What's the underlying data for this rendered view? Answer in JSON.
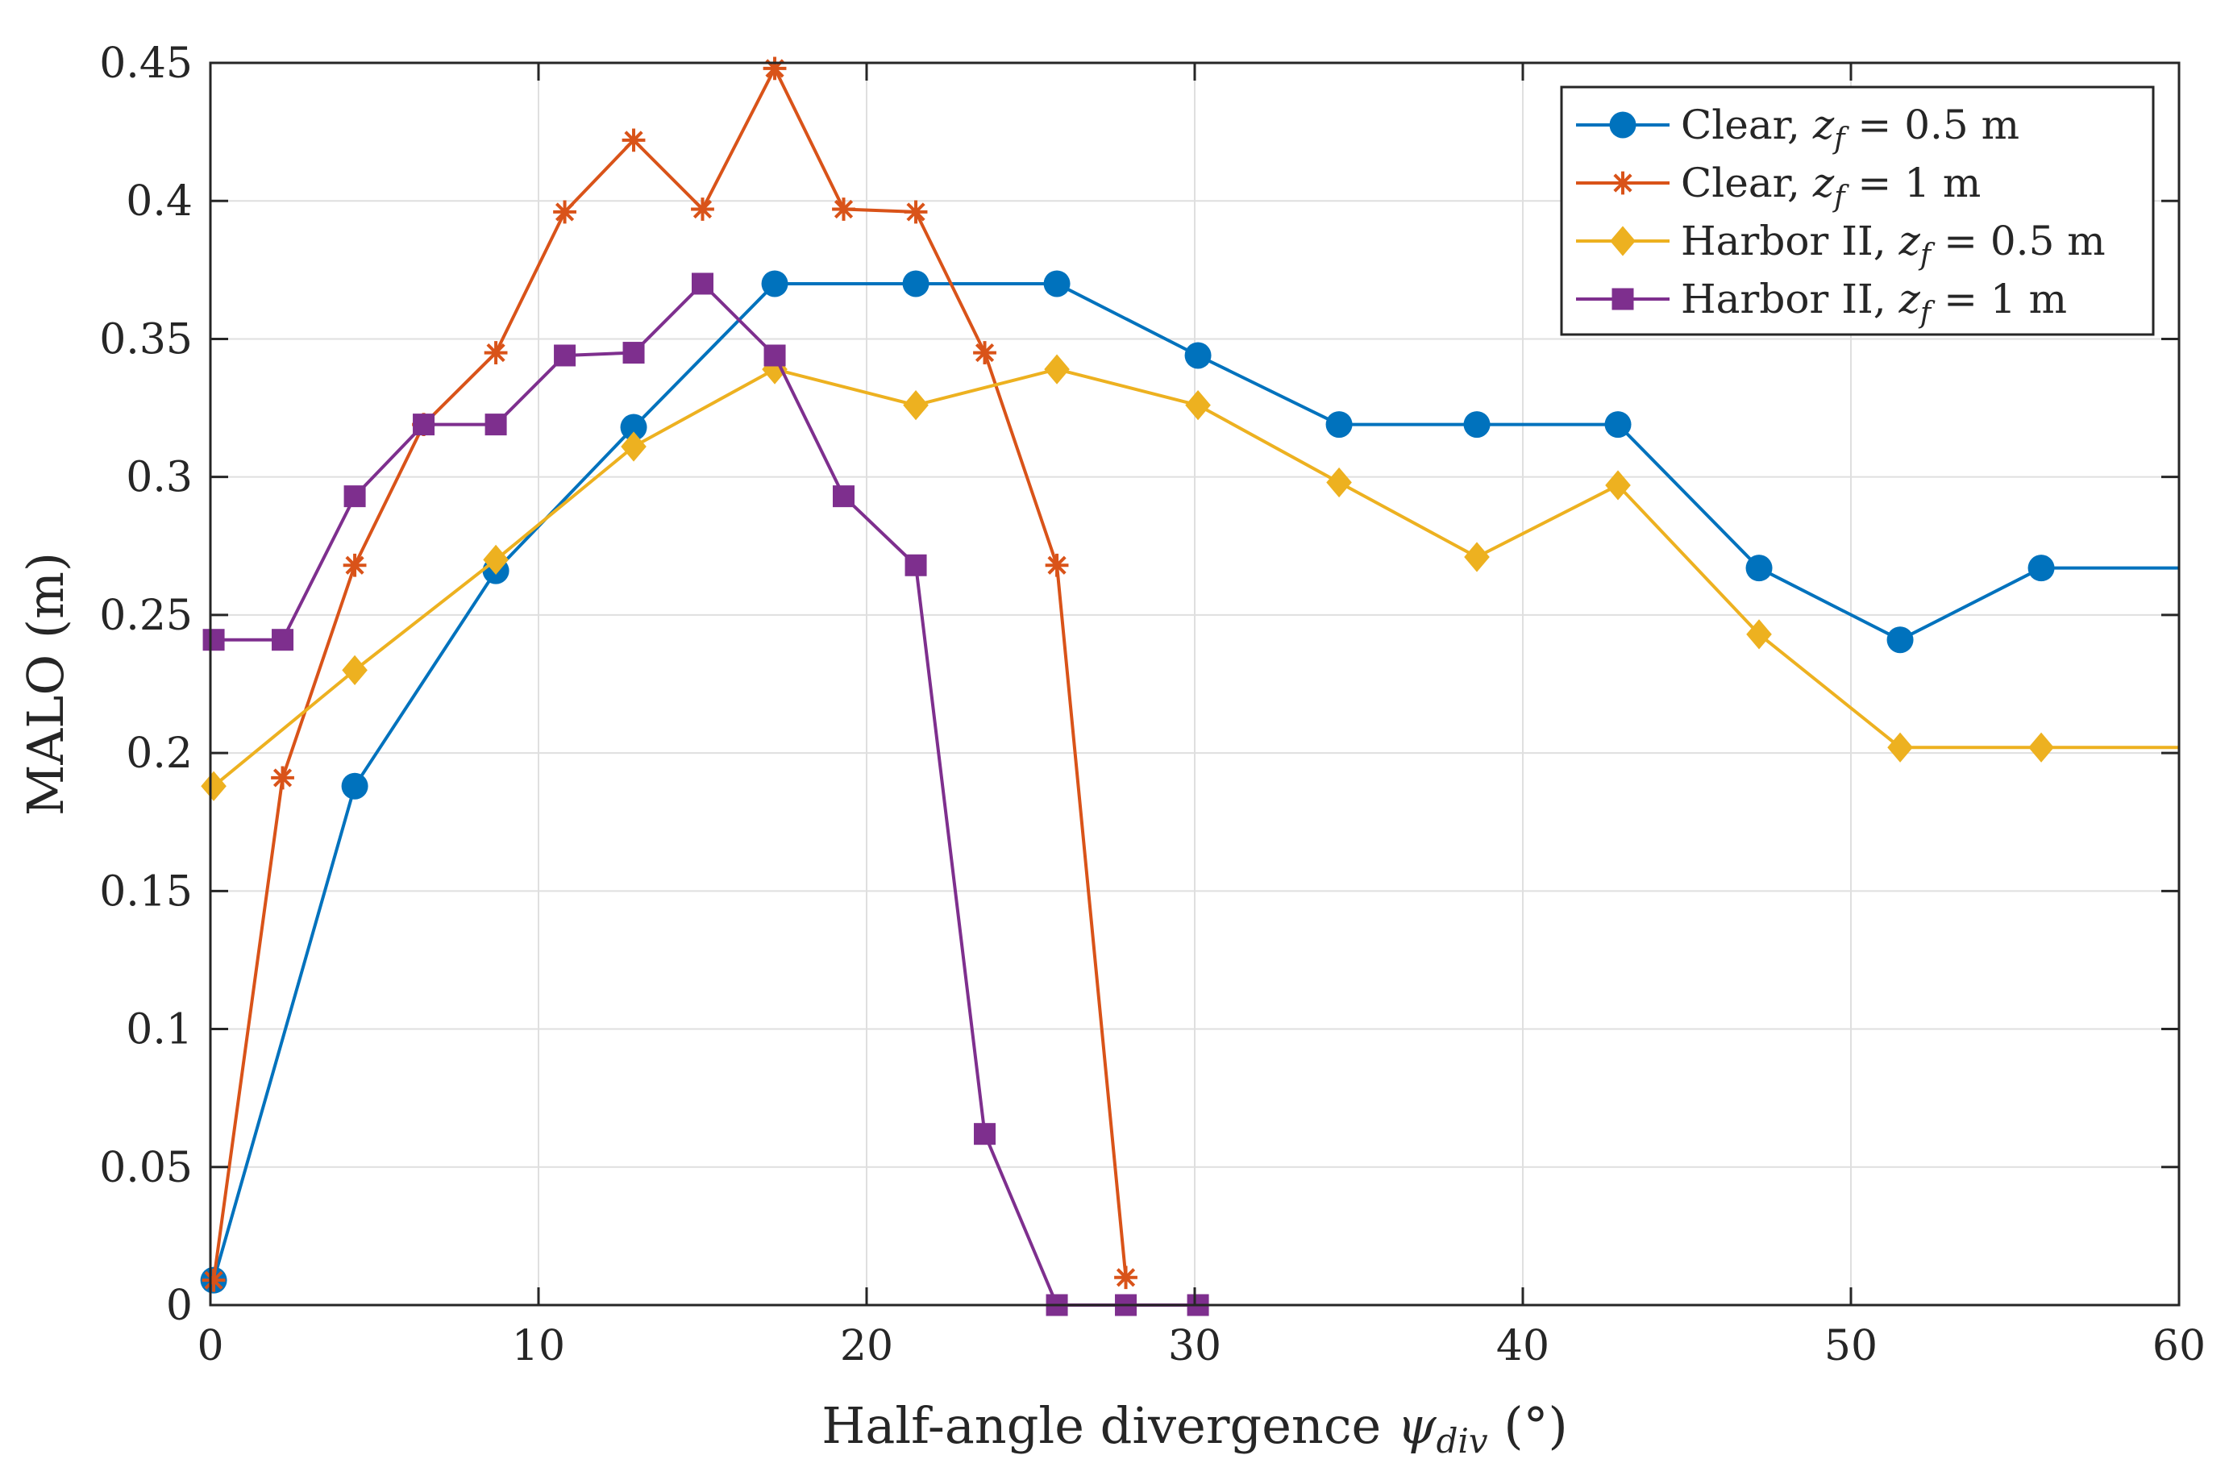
{
  "chart_data": {
    "type": "line",
    "title": "",
    "xlabel": "Half-angle divergence ψdiv (°)",
    "xlabel_parts": {
      "main": "Half-angle divergence ",
      "symbol": "ψ",
      "subscript": "div",
      "unit": " (°)"
    },
    "ylabel": "MALO (m)",
    "xlim": [
      0,
      60
    ],
    "ylim": [
      0,
      0.45
    ],
    "xticks": [
      0,
      10,
      20,
      30,
      40,
      50,
      60
    ],
    "xtick_labels": [
      "0",
      "10",
      "20",
      "30",
      "40",
      "50",
      "60"
    ],
    "yticks": [
      0,
      0.05,
      0.1,
      0.15,
      0.2,
      0.25,
      0.3,
      0.35,
      0.4,
      0.45
    ],
    "ytick_labels": [
      "0",
      "0.05",
      "0.1",
      "0.15",
      "0.2",
      "0.25",
      "0.3",
      "0.35",
      "0.4",
      "0.45"
    ],
    "grid": true,
    "legend_position": "top-right",
    "series": [
      {
        "name": "Clear, zf = 0.5 m",
        "label_parts": {
          "prefix": "Clear, ",
          "var": "z",
          "sub": "f",
          "suffix": " = 0.5 m"
        },
        "color": "#0072BD",
        "marker": "circle",
        "x": [
          0.1,
          4.4,
          8.7,
          12.9,
          17.2,
          21.5,
          25.8,
          30.1,
          34.4,
          38.6,
          42.9,
          47.2,
          51.5,
          55.8,
          60
        ],
        "y": [
          0.009,
          0.188,
          0.266,
          0.318,
          0.37,
          0.37,
          0.37,
          0.344,
          0.319,
          0.319,
          0.319,
          0.267,
          0.241,
          0.267,
          0.267
        ],
        "markers_shown": 14
      },
      {
        "name": "Clear, zf = 1 m",
        "label_parts": {
          "prefix": "Clear, ",
          "var": "z",
          "sub": "f",
          "suffix": " = 1 m"
        },
        "color": "#D95319",
        "marker": "asterisk",
        "x": [
          0.1,
          2.2,
          4.4,
          6.5,
          8.7,
          10.8,
          12.9,
          15.0,
          17.2,
          19.3,
          21.5,
          23.6,
          25.8,
          27.9
        ],
        "y": [
          0.009,
          0.191,
          0.268,
          0.319,
          0.345,
          0.396,
          0.422,
          0.397,
          0.448,
          0.397,
          0.396,
          0.345,
          0.268,
          0.01
        ],
        "markers_shown": 14
      },
      {
        "name": "Harbor II, zf = 0.5 m",
        "label_parts": {
          "prefix": "Harbor II, ",
          "var": "z",
          "sub": "f",
          "suffix": " = 0.5 m"
        },
        "color": "#EDB120",
        "marker": "diamond",
        "x": [
          0.1,
          4.4,
          8.7,
          12.9,
          17.2,
          21.5,
          25.8,
          30.1,
          34.4,
          38.6,
          42.9,
          47.2,
          51.5,
          55.8,
          60
        ],
        "y": [
          0.188,
          0.23,
          0.27,
          0.311,
          0.339,
          0.326,
          0.339,
          0.326,
          0.298,
          0.271,
          0.297,
          0.243,
          0.202,
          0.202,
          0.202
        ],
        "markers_shown": 14
      },
      {
        "name": "Harbor II, zf = 1 m",
        "label_parts": {
          "prefix": "Harbor II, ",
          "var": "z",
          "sub": "f",
          "suffix": " = 1 m"
        },
        "color": "#7E2F8E",
        "marker": "square",
        "x": [
          0.1,
          2.2,
          4.4,
          6.5,
          8.7,
          10.8,
          12.9,
          15.0,
          17.2,
          19.3,
          21.5,
          23.6,
          25.8,
          27.9,
          30.1
        ],
        "y": [
          0.241,
          0.241,
          0.293,
          0.319,
          0.319,
          0.344,
          0.345,
          0.37,
          0.344,
          0.293,
          0.268,
          0.062,
          0.0,
          0.0,
          0.0
        ],
        "markers_shown": 15
      }
    ]
  }
}
